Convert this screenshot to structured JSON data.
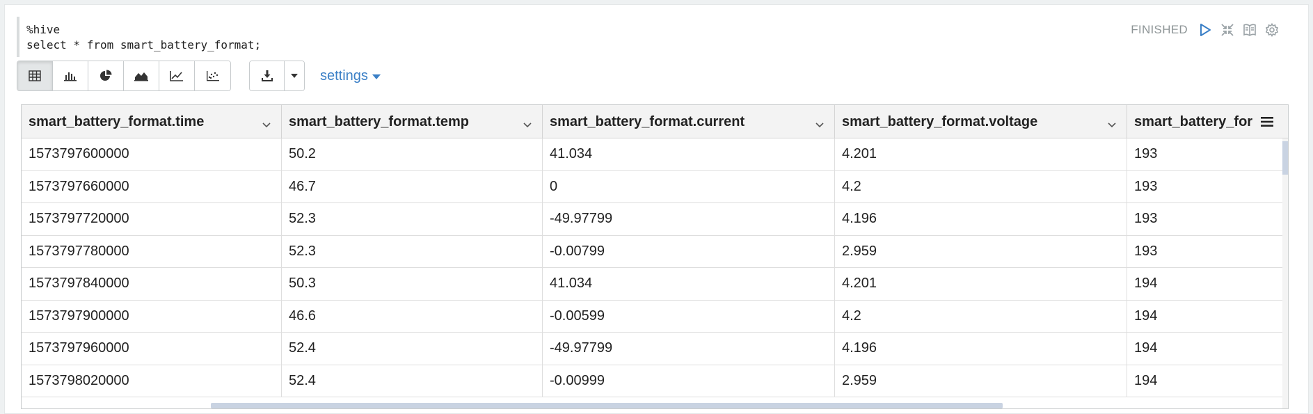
{
  "editor": {
    "lines": [
      "%hive",
      "select * from smart_battery_format;"
    ]
  },
  "status": {
    "text": "FINISHED",
    "icons": [
      "play-icon",
      "collapse-icon",
      "book-icon",
      "gear-icon"
    ]
  },
  "toolbar": {
    "views": [
      "table-icon",
      "bar-chart-icon",
      "pie-chart-icon",
      "area-chart-icon",
      "line-chart-icon",
      "scatter-chart-icon"
    ],
    "active_view": "table-icon",
    "download_icon": "download-icon",
    "settings_label": "settings"
  },
  "colors": {
    "accent": "#3a7fc6",
    "header_bg": "#f3f3f3",
    "scroll_thumb": "#c9d3e2"
  },
  "table": {
    "columns": [
      "smart_battery_format.time",
      "smart_battery_format.temp",
      "smart_battery_format.current",
      "smart_battery_format.voltage",
      "smart_battery_for"
    ],
    "rows": [
      [
        "1573797600000",
        "50.2",
        "41.034",
        "4.201",
        "193"
      ],
      [
        "1573797660000",
        "46.7",
        "0",
        "4.2",
        "193"
      ],
      [
        "1573797720000",
        "52.3",
        "-49.97799",
        "4.196",
        "193"
      ],
      [
        "1573797780000",
        "52.3",
        "-0.00799",
        "2.959",
        "193"
      ],
      [
        "1573797840000",
        "50.3",
        "41.034",
        "4.201",
        "194"
      ],
      [
        "1573797900000",
        "46.6",
        "-0.00599",
        "4.2",
        "194"
      ],
      [
        "1573797960000",
        "52.4",
        "-49.97799",
        "4.196",
        "194"
      ],
      [
        "1573798020000",
        "52.4",
        "-0.00999",
        "2.959",
        "194"
      ]
    ]
  }
}
